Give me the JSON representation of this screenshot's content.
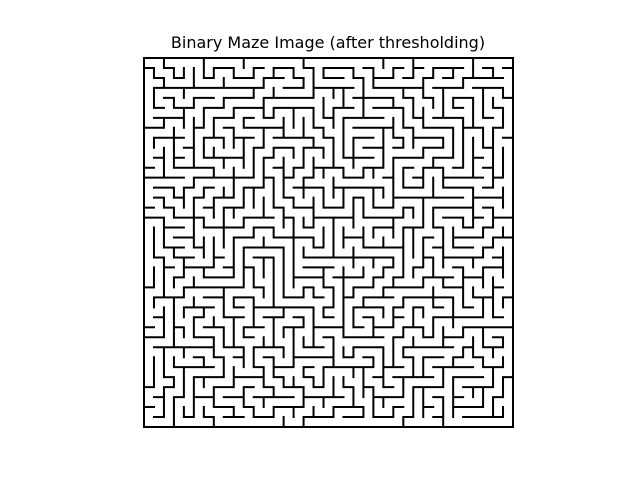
{
  "figure": {
    "title": "Binary Maze Image (after thresholding)"
  },
  "maze": {
    "cols": 37,
    "rows": 37,
    "seed": 20240613,
    "wall_color": "#000000",
    "path_color": "#ffffff",
    "axes_visible": false
  }
}
